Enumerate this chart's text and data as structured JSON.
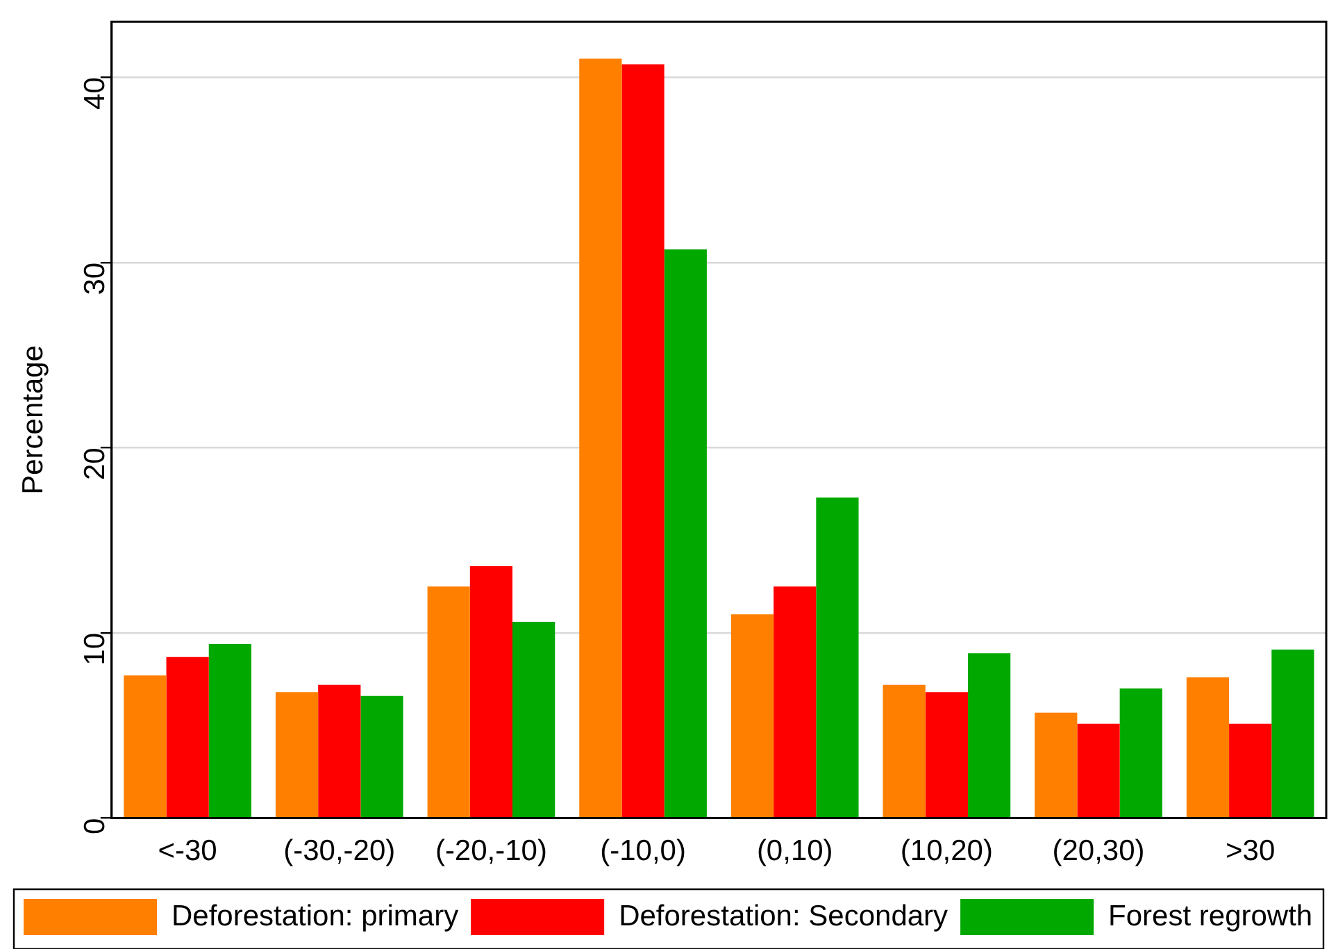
{
  "chart_data": {
    "type": "bar",
    "ylabel": "Percentage",
    "categories": [
      "<-30",
      "(-30,-20)",
      "(-20,-10)",
      "(-10,0)",
      "(0,10)",
      "(10,20)",
      "(20,30)",
      ">30"
    ],
    "series": [
      {
        "name": "Deforestation: primary",
        "color": "#ff8000",
        "values": [
          7.7,
          6.8,
          12.5,
          41.0,
          11.0,
          7.2,
          5.7,
          7.6
        ]
      },
      {
        "name": "Deforestation: Secondary",
        "color": "#ff0000",
        "values": [
          8.7,
          7.2,
          13.6,
          40.7,
          12.5,
          6.8,
          5.1,
          5.1
        ]
      },
      {
        "name": "Forest regrowth",
        "color": "#00a800",
        "values": [
          9.4,
          6.6,
          10.6,
          30.7,
          17.3,
          8.9,
          7.0,
          9.1
        ]
      }
    ],
    "ylim": [
      0,
      43
    ],
    "yticks": [
      0,
      10,
      20,
      30,
      40
    ],
    "grid": "y",
    "legend": "bottom"
  }
}
